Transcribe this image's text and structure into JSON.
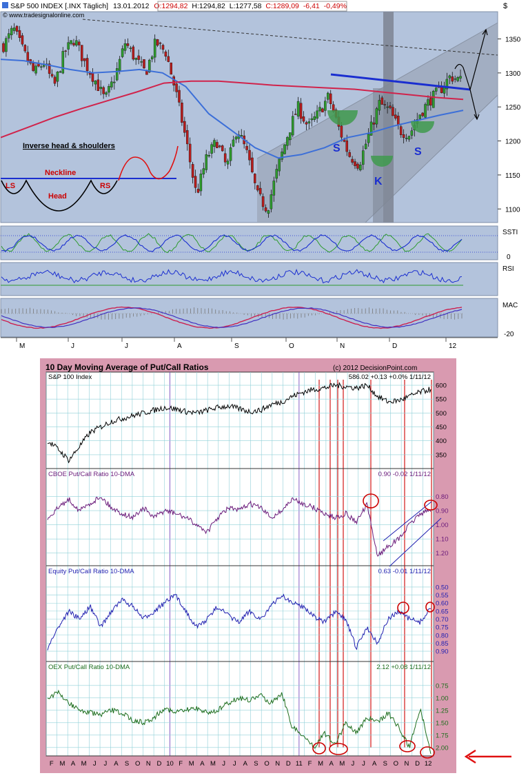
{
  "top_chart": {
    "header": {
      "symbol": "S&P 500 INDEX [.INX Täglich]",
      "date": "13.01.2012",
      "open": "O:1294,82",
      "high": "H:1294,82",
      "low": "L:1277,58",
      "close": "C:1289,09",
      "change": "-6,41",
      "change_pct": "-0,49%"
    },
    "watermark": "© www.tradesignalonline.com",
    "currency_symbol": "$",
    "price_axis": [
      "1350",
      "1300",
      "1250",
      "1200",
      "1150",
      "1100"
    ],
    "annotations": {
      "pattern_title": "Inverse head & shoulders",
      "neckline": "Neckline",
      "ls": "LS",
      "head": "Head",
      "rs": "RS",
      "s_left": "S",
      "k": "K",
      "s_right": "S"
    },
    "indicators": [
      {
        "name": "SSTI",
        "axis": [
          "0"
        ]
      },
      {
        "name": "RSI",
        "axis": []
      },
      {
        "name": "MAC",
        "axis": [
          "-20"
        ]
      }
    ],
    "months": [
      "M",
      "J",
      "J",
      "A",
      "S",
      "O",
      "N",
      "D",
      "12"
    ],
    "colors": {
      "background": "#b3c3dc",
      "up_candle": "#2e9b2e",
      "down_candle": "#b81c1c",
      "ma_blue": "#3c6fd8",
      "ma_red": "#d0234b",
      "neckline": "#1a2ed0",
      "head_shoulder_fill": "#3f9a4e"
    }
  },
  "bottom_chart": {
    "title": "10 Day Moving Average of Put/Call Ratios",
    "copyright": "(c) 2012 DecisionPoint.com",
    "panels": [
      {
        "name": "S&P 100 Index",
        "readout": "586.02 +0.13 +0.0% 1/11/12",
        "axis": [
          "600",
          "550",
          "500",
          "450",
          "400",
          "350"
        ],
        "color": "#000000"
      },
      {
        "name": "CBOE Put/Call Ratio 10-DMA",
        "readout": "0.90 -0.02 1/11/12",
        "axis": [
          "0.80",
          "0.90",
          "1.00",
          "1.10",
          "1.20"
        ],
        "color": "#6a1a7a"
      },
      {
        "name": "Equity Put/Call Ratio 10-DMA",
        "readout": "0.63 -0.01 1/11/12",
        "axis": [
          "0.50",
          "0.55",
          "0.60",
          "0.65",
          "0.70",
          "0.75",
          "0.80",
          "0.85",
          "0.90"
        ],
        "color": "#1f1fb0"
      },
      {
        "name": "OEX Put/Call Ratio 10-DMA",
        "readout": "2.12 +0.08 1/11/12",
        "axis": [
          "0.75",
          "1.00",
          "1.25",
          "1.50",
          "1.75",
          "2.00"
        ],
        "color": "#1c6d1c"
      }
    ],
    "months": [
      "F",
      "M",
      "A",
      "M",
      "J",
      "J",
      "A",
      "S",
      "O",
      "N",
      "D",
      "10",
      "F",
      "M",
      "A",
      "M",
      "J",
      "J",
      "A",
      "S",
      "O",
      "N",
      "D",
      "11",
      "F",
      "M",
      "A",
      "M",
      "J",
      "J",
      "A",
      "S",
      "O",
      "N",
      "D",
      "12"
    ],
    "colors": {
      "frame": "#d99ab0",
      "grid": "#8fd0d8",
      "signal_line": "#cc0000",
      "circle": "#cc0000"
    }
  },
  "chart_data": [
    {
      "type": "candlestick",
      "title": "S&P 500 INDEX [.INX Täglich]",
      "ylim": [
        1080,
        1390
      ],
      "x_categories": [
        "M",
        "J",
        "J",
        "A",
        "S",
        "O",
        "N",
        "D",
        "12"
      ],
      "approx_closes": [
        1340,
        1365,
        1330,
        1300,
        1315,
        1280,
        1330,
        1350,
        1315,
        1290,
        1260,
        1295,
        1345,
        1320,
        1300,
        1345,
        1330,
        1270,
        1200,
        1120,
        1175,
        1200,
        1160,
        1220,
        1180,
        1120,
        1100,
        1160,
        1210,
        1250,
        1220,
        1240,
        1265,
        1220,
        1180,
        1165,
        1210,
        1255,
        1245,
        1215,
        1210,
        1240,
        1260,
        1275,
        1295,
        1289
      ],
      "ma_blue_approx": [
        1320,
        1318,
        1312,
        1305,
        1300,
        1302,
        1305,
        1300,
        1280,
        1240,
        1215,
        1190,
        1175,
        1180,
        1190,
        1205,
        1212,
        1222,
        1230,
        1238,
        1245
      ],
      "ma_red_approx": [
        1205,
        1220,
        1235,
        1248,
        1260,
        1272,
        1285,
        1288,
        1288,
        1285,
        1282,
        1280,
        1278,
        1276,
        1272,
        1268,
        1264,
        1261
      ]
    },
    {
      "type": "line",
      "title": "10 Day Moving Average of Put/Call Ratios",
      "series": [
        {
          "name": "S&P 100 Index",
          "ylim": [
            320,
            615
          ],
          "values": [
            400,
            370,
            330,
            380,
            430,
            450,
            470,
            480,
            490,
            500,
            510,
            520,
            515,
            505,
            500,
            510,
            520,
            525,
            515,
            505,
            510,
            530,
            540,
            560,
            575,
            585,
            590,
            600,
            595,
            590,
            600,
            560,
            540,
            545,
            560,
            575,
            586
          ]
        },
        {
          "name": "CBOE Put/Call Ratio 10-DMA",
          "ylim": [
            1.25,
            0.72
          ],
          "values": [
            0.95,
            0.88,
            0.82,
            0.9,
            0.85,
            0.8,
            0.88,
            0.92,
            0.95,
            0.88,
            0.95,
            0.9,
            0.92,
            0.95,
            1.0,
            1.05,
            0.95,
            0.88,
            0.9,
            0.85,
            0.88,
            0.95,
            0.9,
            0.82,
            0.85,
            0.88,
            0.92,
            0.95,
            0.92,
            0.98,
            0.86,
            1.22,
            1.15,
            1.1,
            1.0,
            0.92,
            0.9
          ]
        },
        {
          "name": "Equity Put/Call Ratio 10-DMA",
          "ylim": [
            0.93,
            0.47
          ],
          "values": [
            0.88,
            0.75,
            0.65,
            0.7,
            0.62,
            0.75,
            0.65,
            0.58,
            0.62,
            0.7,
            0.65,
            0.6,
            0.55,
            0.65,
            0.75,
            0.7,
            0.62,
            0.68,
            0.72,
            0.65,
            0.7,
            0.62,
            0.55,
            0.6,
            0.62,
            0.68,
            0.72,
            0.66,
            0.7,
            0.88,
            0.75,
            0.85,
            0.7,
            0.65,
            0.7,
            0.72,
            0.63
          ]
        },
        {
          "name": "OEX Put/Call Ratio 10-DMA",
          "ylim": [
            2.1,
            0.6
          ],
          "values": [
            1.0,
            0.9,
            1.1,
            1.25,
            1.3,
            1.35,
            1.25,
            1.3,
            1.45,
            1.5,
            1.4,
            1.2,
            1.3,
            1.25,
            1.2,
            1.3,
            1.25,
            1.1,
            1.0,
            1.05,
            0.95,
            1.1,
            0.9,
            1.6,
            1.75,
            2.0,
            1.7,
            1.95,
            1.5,
            1.7,
            1.4,
            1.5,
            1.3,
            1.6,
            2.0,
            1.2,
            2.12
          ]
        }
      ]
    }
  ]
}
